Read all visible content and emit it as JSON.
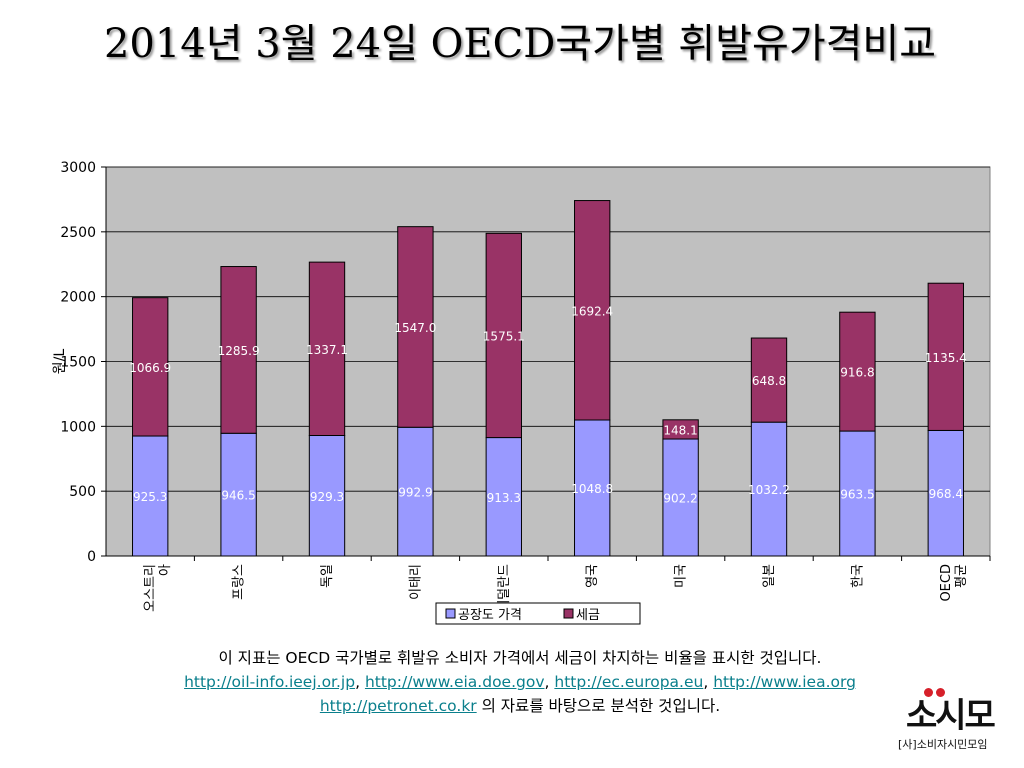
{
  "slide": {
    "title": "2014년 3월 24일 OECD국가별 휘발유가격비교"
  },
  "chart_data": {
    "type": "bar",
    "stacked": true,
    "categories": [
      "오스트리아",
      "프랑스",
      "독일",
      "이태리",
      "네덜란드",
      "영국",
      "미국",
      "일본",
      "한국",
      "OECD 평균"
    ],
    "series": [
      {
        "name": "공장도 가격",
        "color": "#9999ff",
        "values": [
          925.3,
          946.5,
          929.3,
          992.9,
          913.3,
          1048.8,
          902.2,
          1032.2,
          963.5,
          968.4
        ]
      },
      {
        "name": "세금",
        "color": "#993366",
        "values": [
          1066.9,
          1285.9,
          1337.1,
          1547.0,
          1575.1,
          1692.4,
          148.1,
          648.8,
          916.8,
          1135.4
        ]
      }
    ],
    "ylabel": "원/L",
    "xlabel": "",
    "ylim": [
      0,
      3000
    ],
    "yticks": [
      0,
      500,
      1000,
      1500,
      2000,
      2500,
      3000
    ],
    "grid": true,
    "legend_position": "bottom",
    "plot_background": "#c0c0c0"
  },
  "caption": {
    "line1": "이 지표는 OECD 국가별로 휘발유 소비자 가격에서 세금이 차지하는 비율을 표시한 것입니다.",
    "links": [
      "http://oil-info.ieej.or.jp",
      "http://www.eia.doe.gov",
      "http://ec.europa.eu",
      "http://www.iea.org",
      "http://petronet.co.kr"
    ],
    "line3_suffix": "의 자료를 바탕으로 분석한 것입니다."
  },
  "logo": {
    "main": "소시모",
    "sub": "[사]소비자시민모임"
  }
}
